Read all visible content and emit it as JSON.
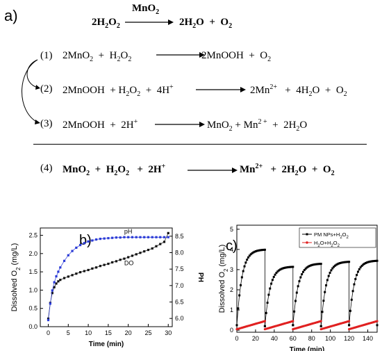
{
  "panel_a": {
    "label": "a)",
    "overall": {
      "left": "2H<sub>2</sub>O<sub>2</sub>",
      "catalyst": "MnO<sub>2</sub>",
      "right": "2H<sub>2</sub>O &nbsp;+&nbsp; O<sub>2</sub>"
    },
    "reactions": [
      {
        "num": "(1)",
        "left": "2MnO<sub>2</sub> &nbsp;+&nbsp; H<sub>2</sub>O<sub>2</sub>",
        "right": "2MnOOH &nbsp;+&nbsp; O<sub>2</sub>"
      },
      {
        "num": "(2)",
        "left": "2MnOOH &nbsp;+ H<sub>2</sub>O<sub>2</sub> &nbsp;+&nbsp; 4H<sup>+</sup>",
        "right": "2Mn<sup>2+</sup> &nbsp;&nbsp;+&nbsp; 4H<sub>2</sub>O &nbsp;+&nbsp; O<sub>2</sub>"
      },
      {
        "num": "(3)",
        "left": "2MnOOH &nbsp;+&nbsp; 2H<sup>+</sup>",
        "right": "MnO<sub>2</sub> + Mn<sup>2 +</sup> &nbsp;+&nbsp; 2H<sub>2</sub>O"
      },
      {
        "num": "(4)",
        "left": "MnO<sub>2</sub> &nbsp;+&nbsp; H<sub>2</sub>O<sub>2</sub> &nbsp;&nbsp;+ &nbsp;2H<sup>+</sup>",
        "right": "Mn<sup>2+</sup> &nbsp;&nbsp;+&nbsp; 2H<sub>2</sub>O &nbsp;+&nbsp; O<sub>2</sub>"
      }
    ]
  },
  "chart_data": [
    {
      "type": "scatter",
      "panel_label": "b)",
      "xlabel": "Time (min)",
      "ylabel": "Dissolved O<tspan baseline-shift='sub' font-size='8'>2</tspan> (mg/L)",
      "y2label": "PH",
      "xlim": [
        -2,
        31
      ],
      "ylim": [
        0,
        2.7
      ],
      "y2lim": [
        5.75,
        8.75
      ],
      "xticks": [
        0,
        5,
        10,
        15,
        20,
        25,
        30
      ],
      "yticks": [
        0.0,
        0.5,
        1.0,
        1.5,
        2.0,
        2.5
      ],
      "yticklabels": [
        "0.0",
        "0.5",
        "1.0",
        "1.5",
        "2.0",
        "2.5"
      ],
      "y2ticks": [
        6.0,
        6.5,
        7.0,
        7.5,
        8.0,
        8.5
      ],
      "y2ticklabels": [
        "6.0",
        "6.5",
        "7.0",
        "7.5",
        "8.0",
        "8.5"
      ],
      "series": [
        {
          "name": "DO",
          "axis": "left",
          "color": "#111111",
          "x": [
            0,
            0.5,
            1,
            1.5,
            2,
            2.5,
            3,
            4,
            5,
            6,
            7,
            8,
            9,
            10,
            11,
            12,
            13,
            14,
            15,
            16,
            17,
            18,
            19,
            20,
            21,
            22,
            23,
            24,
            25,
            26,
            27,
            28,
            29,
            30
          ],
          "y": [
            0.22,
            0.65,
            0.92,
            1.08,
            1.18,
            1.24,
            1.28,
            1.33,
            1.37,
            1.41,
            1.45,
            1.49,
            1.52,
            1.55,
            1.59,
            1.62,
            1.66,
            1.69,
            1.72,
            1.76,
            1.79,
            1.83,
            1.86,
            1.9,
            1.94,
            1.98,
            2.02,
            2.06,
            2.1,
            2.14,
            2.2,
            2.26,
            2.32,
            2.56
          ]
        },
        {
          "name": "pH",
          "axis": "right",
          "color": "#2b3bd6",
          "x": [
            0,
            0.5,
            1,
            1.5,
            2,
            2.5,
            3,
            4,
            5,
            6,
            7,
            8,
            9,
            10,
            11,
            12,
            13,
            14,
            15,
            16,
            17,
            18,
            19,
            20,
            21,
            22,
            23,
            24,
            25,
            26,
            27,
            28,
            29,
            30
          ],
          "y": [
            5.95,
            6.45,
            6.85,
            7.1,
            7.28,
            7.42,
            7.55,
            7.75,
            7.92,
            8.05,
            8.15,
            8.23,
            8.29,
            8.34,
            8.37,
            8.4,
            8.42,
            8.43,
            8.44,
            8.45,
            8.46,
            8.46,
            8.47,
            8.47,
            8.47,
            8.47,
            8.47,
            8.47,
            8.47,
            8.47,
            8.47,
            8.47,
            8.47,
            8.47
          ]
        }
      ],
      "annotations": [
        {
          "text": "pH",
          "x": 19,
          "y2": 8.58
        },
        {
          "text": "DO",
          "x": 19,
          "y": 1.68
        }
      ]
    },
    {
      "type": "scatter",
      "panel_label": "c)",
      "xlabel": "Time (min)",
      "ylabel": "Dissolved O<tspan baseline-shift='sub' font-size='8'>2</tspan> (mg/L)",
      "xlim": [
        0,
        150
      ],
      "ylim": [
        -0.1,
        5.2
      ],
      "xticks": [
        0,
        20,
        40,
        60,
        80,
        100,
        120,
        140
      ],
      "yticks": [
        0,
        1,
        2,
        3,
        4,
        5
      ],
      "legend_position": "top-right",
      "series": [
        {
          "name": "PM NPs+H<tspan baseline-shift='sub' font-size='6'>2</tspan>O<tspan baseline-shift='sub' font-size='6'>2</tspan>",
          "color": "#000000",
          "marker": "square",
          "cycles": [
            {
              "start": 0,
              "end": 30,
              "y0": 0.25,
              "ymax": 4.0
            },
            {
              "start": 30,
              "end": 60,
              "y0": 0.2,
              "ymax": 3.15
            },
            {
              "start": 60,
              "end": 90,
              "y0": 0.25,
              "ymax": 3.3
            },
            {
              "start": 90,
              "end": 120,
              "y0": 0.2,
              "ymax": 3.4
            },
            {
              "start": 120,
              "end": 150,
              "y0": 0.25,
              "ymax": 3.45
            }
          ]
        },
        {
          "name": "H<tspan baseline-shift='sub' font-size='6'>2</tspan>O+H<tspan baseline-shift='sub' font-size='6'>2</tspan>O<tspan baseline-shift='sub' font-size='6'>2</tspan>",
          "color": "#e02020",
          "marker": "circle",
          "cycles": [
            {
              "start": 0,
              "end": 30,
              "y0": 0.05,
              "yend": 0.45
            },
            {
              "start": 30,
              "end": 60,
              "y0": 0.05,
              "yend": 0.45
            },
            {
              "start": 60,
              "end": 90,
              "y0": 0.05,
              "yend": 0.45
            },
            {
              "start": 90,
              "end": 120,
              "y0": 0.05,
              "yend": 0.45
            },
            {
              "start": 120,
              "end": 150,
              "y0": 0.05,
              "yend": 0.45
            }
          ]
        }
      ]
    }
  ]
}
